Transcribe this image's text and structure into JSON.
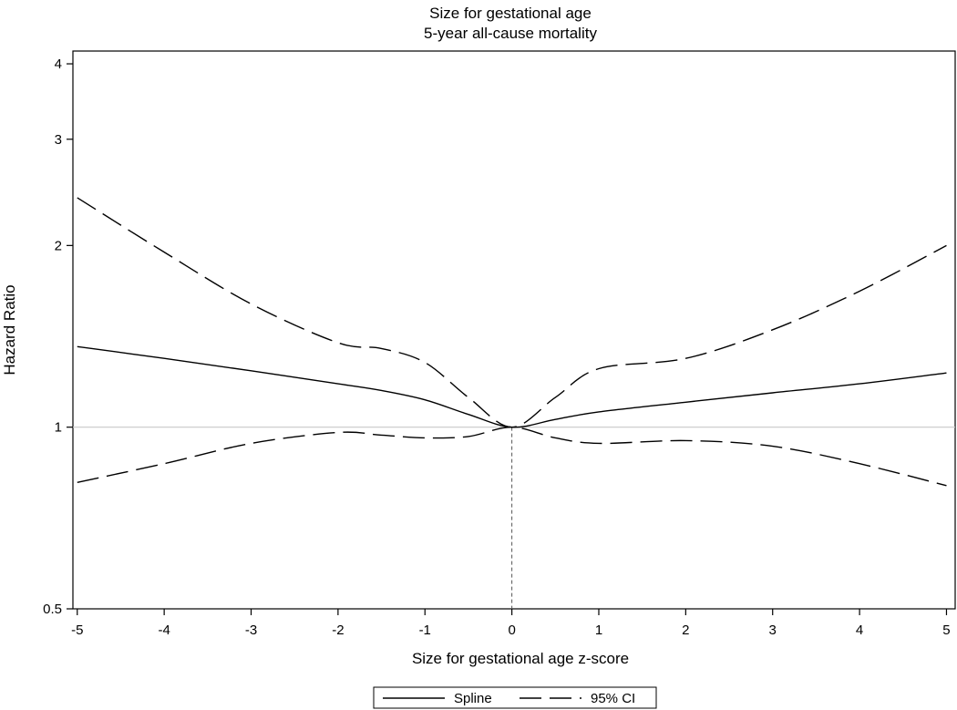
{
  "chart_data": {
    "type": "line",
    "title": "Size for gestational age",
    "subtitle": "5-year all-cause mortality",
    "xlabel": "Size for gestational age z-score",
    "ylabel": "Hazard Ratio",
    "y_scale": "log",
    "xlim": [
      -5.05,
      5.1
    ],
    "ylim": [
      0.5,
      4.2
    ],
    "x_ticks": [
      -5,
      -4,
      -3,
      -2,
      -1,
      0,
      1,
      2,
      3,
      4,
      5
    ],
    "x_tick_labels": [
      "-5",
      "-4",
      "-3",
      "-2",
      "-1",
      "0",
      "1",
      "2",
      "3",
      "4",
      "5"
    ],
    "y_ticks": [
      0.5,
      1,
      2,
      3,
      4
    ],
    "y_tick_labels": [
      "0.5",
      "1",
      "2",
      "3",
      "4"
    ],
    "reference_line_y": 1,
    "reference_line_x": 0,
    "legend_position": "bottom",
    "series": [
      {
        "name": "Spline",
        "style": "solid",
        "color": "#000000",
        "x": [
          -5,
          -4,
          -3,
          -2,
          -1.5,
          -1,
          -0.5,
          0,
          0.5,
          1,
          2,
          3,
          4,
          5
        ],
        "y": [
          1.36,
          1.3,
          1.24,
          1.18,
          1.15,
          1.11,
          1.05,
          1.0,
          1.03,
          1.06,
          1.1,
          1.14,
          1.18,
          1.23
        ]
      },
      {
        "name": "95% CI",
        "style": "dashed",
        "color": "#000000",
        "band": "upper",
        "x": [
          -5,
          -4,
          -3,
          -2,
          -1.5,
          -1,
          -0.5,
          0,
          0.5,
          1,
          2,
          3,
          4,
          5
        ],
        "y": [
          2.4,
          1.95,
          1.6,
          1.38,
          1.35,
          1.28,
          1.12,
          1.0,
          1.12,
          1.25,
          1.3,
          1.45,
          1.68,
          2.0
        ]
      },
      {
        "name": "95% CI",
        "style": "dashed",
        "color": "#000000",
        "band": "lower",
        "x": [
          -5,
          -4,
          -3,
          -2,
          -1.5,
          -1,
          -0.5,
          0,
          0.5,
          1,
          2,
          3,
          4,
          5
        ],
        "y": [
          0.81,
          0.87,
          0.94,
          0.98,
          0.97,
          0.96,
          0.965,
          1.0,
          0.96,
          0.94,
          0.95,
          0.93,
          0.87,
          0.8
        ]
      }
    ],
    "legend": [
      {
        "label": "Spline",
        "style": "solid"
      },
      {
        "label": "95% CI",
        "style": "dashed"
      }
    ]
  }
}
